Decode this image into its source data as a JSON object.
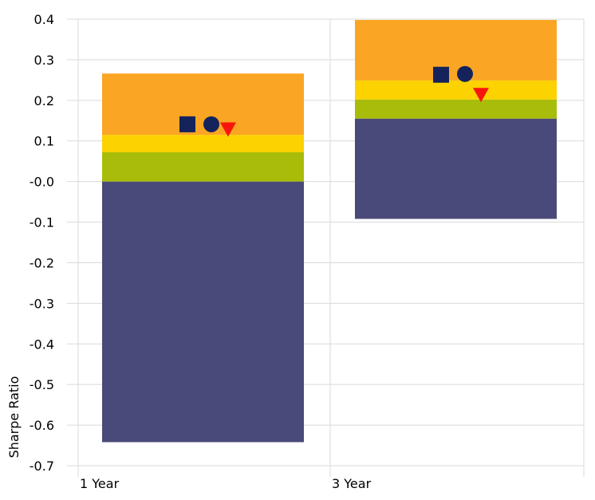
{
  "chart_data": {
    "type": "bar",
    "subtype": "stacked-floating-quartile-bars-with-markers",
    "title": "",
    "xlabel": "",
    "ylabel": "Sharpe Ratio",
    "ylim": [
      -0.7,
      0.4
    ],
    "y_ticks": [
      -0.7,
      -0.6,
      -0.5,
      -0.4,
      -0.3,
      -0.2,
      -0.1,
      0.0,
      0.1,
      0.2,
      0.3,
      0.4
    ],
    "y_tick_labels": [
      "-0.7",
      "-0.6",
      "-0.5",
      "-0.4",
      "-0.3",
      "-0.2",
      "-0.1",
      "-0.0",
      "0.1",
      "0.2",
      "0.3",
      "0.4"
    ],
    "categories": [
      "1 Year",
      "3 Year"
    ],
    "grid": true,
    "legend": "none",
    "bands": [
      {
        "color": "#4a4a7a",
        "ranges": [
          [
            -0.642,
            0.0
          ],
          [
            -0.092,
            0.155
          ]
        ]
      },
      {
        "color": "#a8bc0a",
        "ranges": [
          [
            0.0,
            0.072
          ],
          [
            0.155,
            0.202
          ]
        ]
      },
      {
        "color": "#fcd200",
        "ranges": [
          [
            0.072,
            0.115
          ],
          [
            0.202,
            0.249
          ]
        ]
      },
      {
        "color": "#fba524",
        "ranges": [
          [
            0.115,
            0.266
          ],
          [
            0.249,
            0.398
          ]
        ]
      }
    ],
    "markers": [
      {
        "shape": "square",
        "color": "#14235c",
        "values": [
          0.141,
          0.263
        ]
      },
      {
        "shape": "circle",
        "color": "#14235c",
        "values": [
          0.141,
          0.265
        ]
      },
      {
        "shape": "triangle-down",
        "color": "#f7160c",
        "values": [
          0.128,
          0.213
        ]
      }
    ],
    "colors": {
      "grid": "#d9d9d9",
      "text": "#000000"
    }
  }
}
